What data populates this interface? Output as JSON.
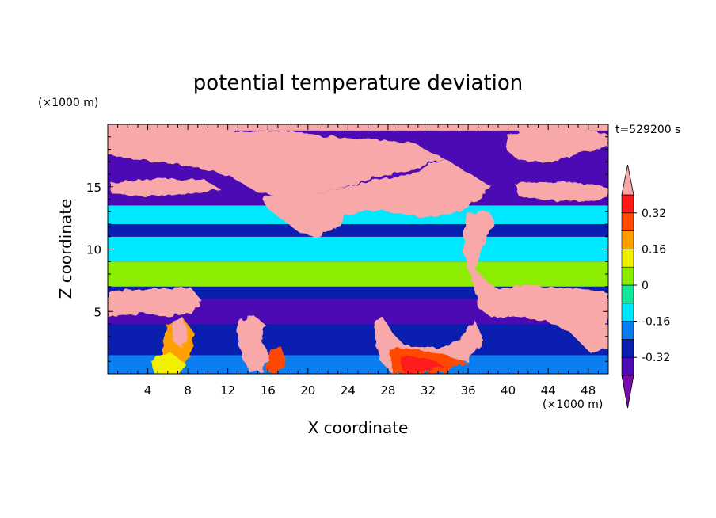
{
  "chart_data": {
    "type": "heatmap",
    "title": "potential temperature deviation",
    "xlabel": "X coordinate",
    "ylabel": "Z coordinate",
    "x_unit": "(×1000 m)",
    "y_unit": "(×1000 m)",
    "time_label": "t=529200 s",
    "xlim": [
      0,
      50
    ],
    "ylim": [
      0,
      20
    ],
    "x_ticks": [
      4,
      8,
      12,
      16,
      20,
      24,
      28,
      32,
      36,
      40,
      44,
      48
    ],
    "y_ticks": [
      5,
      10,
      15
    ],
    "colorbar": {
      "levels": [
        -0.4,
        -0.32,
        -0.24,
        -0.16,
        -0.08,
        0,
        0.08,
        0.16,
        0.24,
        0.32,
        0.4
      ],
      "colors": [
        "#7a0aab",
        "#4b0ab3",
        "#0a1eb0",
        "#0a7ef0",
        "#00e8ff",
        "#12e89a",
        "#8ced00",
        "#f0f000",
        "#ffa000",
        "#ff4a00",
        "#ff1a1a",
        "#f8a8a8"
      ],
      "tick_labels": [
        "0.32",
        "0.16",
        "0",
        "-0.16",
        "-0.32"
      ],
      "tick_values": [
        0.32,
        0.16,
        0,
        -0.16,
        -0.32
      ]
    },
    "layers": [
      {
        "z_range": [
          0,
          1.5
        ],
        "value": -0.2,
        "note": "near-surface mixed, warm plumes near x=28-34"
      },
      {
        "z_range": [
          1.5,
          4
        ],
        "value": -0.25
      },
      {
        "z_range": [
          4,
          6
        ],
        "value": -0.4
      },
      {
        "z_range": [
          6,
          7
        ],
        "value": -0.3
      },
      {
        "z_range": [
          7,
          9
        ],
        "value": 0.05
      },
      {
        "z_range": [
          9,
          11
        ],
        "value": -0.12
      },
      {
        "z_range": [
          11,
          12
        ],
        "value": -0.3
      },
      {
        "z_range": [
          12,
          13.5
        ],
        "value": -0.15
      },
      {
        "z_range": [
          13.5,
          14.5
        ],
        "value": -0.4
      },
      {
        "z_range": [
          14.5,
          19.5
        ],
        "value": -0.4,
        "note": "large positive (>0.4) region between x=12-36"
      },
      {
        "z_range": [
          19.5,
          20
        ],
        "value": 0.45
      }
    ]
  }
}
